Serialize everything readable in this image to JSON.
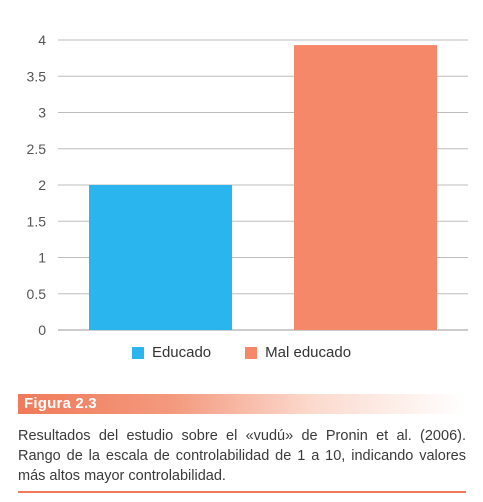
{
  "chart_data": {
    "type": "bar",
    "categories": [
      "Educado",
      "Mal educado"
    ],
    "values": [
      2.0,
      3.93
    ],
    "colors": [
      "#2ab5ee",
      "#f58869"
    ],
    "ylim": [
      0,
      4
    ],
    "yticks": [
      "0",
      "0.5",
      "1",
      "1.5",
      "2",
      "2.5",
      "3",
      "3.5",
      "4"
    ],
    "grid": true,
    "legend": "bottom"
  },
  "figure": {
    "label": "Figura 2.3",
    "caption": "Resultados del estudio sobre el «vudú» de Pronin et al. (2006). Rango de la escala de controlabilidad de 1 a 10, indicando valores más altos mayor controlabilidad."
  }
}
